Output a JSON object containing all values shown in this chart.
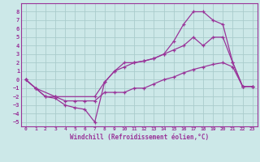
{
  "xlabel": "Windchill (Refroidissement éolien,°C)",
  "bg_color": "#cce8e8",
  "grid_color": "#aacccc",
  "line_color": "#993399",
  "xlim": [
    -0.5,
    23.5
  ],
  "ylim": [
    -5.5,
    9.0
  ],
  "xticks": [
    0,
    1,
    2,
    3,
    4,
    5,
    6,
    7,
    8,
    9,
    10,
    11,
    12,
    13,
    14,
    15,
    16,
    17,
    18,
    19,
    20,
    21,
    22,
    23
  ],
  "yticks": [
    -5,
    -4,
    -3,
    -2,
    -1,
    0,
    1,
    2,
    3,
    4,
    5,
    6,
    7,
    8
  ],
  "line1_x": [
    0,
    1,
    2,
    3,
    4,
    5,
    6,
    7,
    8,
    9,
    10,
    11,
    12,
    13,
    14,
    15,
    16,
    17,
    18,
    19,
    20,
    21,
    22,
    23
  ],
  "line1_y": [
    0,
    -1,
    -2,
    -2.2,
    -3,
    -3.3,
    -3.5,
    -5,
    -0.3,
    1,
    1.5,
    2,
    2.2,
    2.5,
    3,
    3.5,
    4,
    5,
    4,
    5,
    5,
    2,
    -0.8,
    -0.8
  ],
  "line2_x": [
    0,
    1,
    2,
    3,
    4,
    5,
    6,
    7,
    8,
    9,
    10,
    11,
    12,
    13,
    14,
    15,
    16,
    17,
    18,
    19,
    20,
    21,
    22,
    23
  ],
  "line2_y": [
    0,
    -1,
    -2,
    -2,
    -2.5,
    -2.5,
    -2.5,
    -2.5,
    -1.5,
    -1.5,
    -1.5,
    -1,
    -1,
    -0.5,
    0,
    0.3,
    0.8,
    1.2,
    1.5,
    1.8,
    2,
    1.5,
    -0.8,
    -0.8
  ],
  "line3_x": [
    0,
    1,
    3,
    7,
    8,
    9,
    10,
    11,
    12,
    13,
    14,
    15,
    16,
    17,
    18,
    19,
    20,
    21,
    22,
    23
  ],
  "line3_y": [
    0,
    -1,
    -2,
    -2,
    -0.3,
    1,
    2,
    2,
    2.2,
    2.5,
    3,
    4.5,
    6.5,
    8,
    8,
    7,
    6.5,
    2,
    -0.8,
    -0.8
  ]
}
